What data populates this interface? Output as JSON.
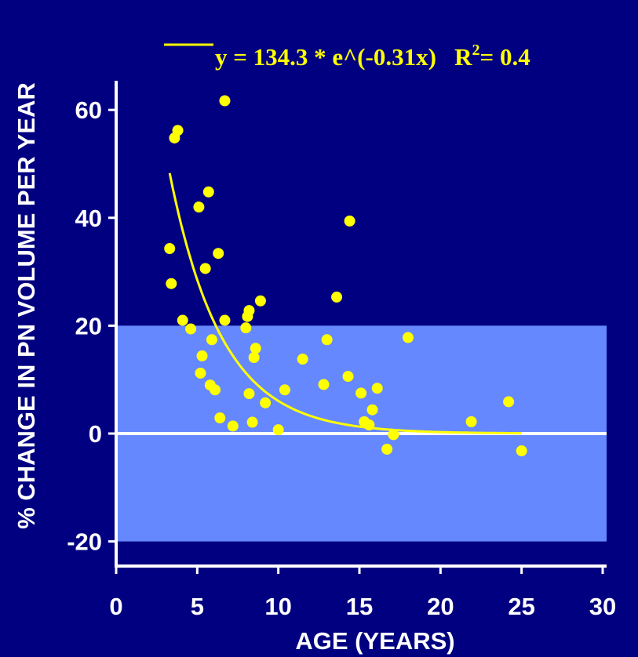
{
  "chart_data": {
    "type": "scatter",
    "xlabel": "AGE (YEARS)",
    "ylabel": "% CHANGE IN PN VOLUME PER YEAR",
    "xlim": [
      0,
      30
    ],
    "ylim": [
      -25,
      65
    ],
    "x_ticks": [
      0,
      5,
      10,
      15,
      20,
      25,
      30
    ],
    "y_ticks": [
      -20,
      0,
      20,
      40,
      60
    ],
    "band": {
      "from": -20,
      "to": 20,
      "color": "#6688ff"
    },
    "zero_line_color": "#ffffff",
    "marker_color": "#ffff00",
    "background_color": "#000080",
    "grid": false,
    "fit": {
      "equation_main": "y = 134.3 * e^(-0.31x)   R",
      "r2_superscript": "2",
      "r2_value": "= 0.4",
      "a": 134.3,
      "b": -0.31,
      "x_range": [
        3.3,
        25
      ]
    },
    "points": [
      [
        3.3,
        34.3
      ],
      [
        3.4,
        27.8
      ],
      [
        3.6,
        54.8
      ],
      [
        3.8,
        56.2
      ],
      [
        4.1,
        21.0
      ],
      [
        4.6,
        19.4
      ],
      [
        5.1,
        42.0
      ],
      [
        5.2,
        11.2
      ],
      [
        5.3,
        14.4
      ],
      [
        5.5,
        30.6
      ],
      [
        5.7,
        44.8
      ],
      [
        5.8,
        9.0
      ],
      [
        5.9,
        17.4
      ],
      [
        6.1,
        8.1
      ],
      [
        6.3,
        33.4
      ],
      [
        6.4,
        2.9
      ],
      [
        6.7,
        61.7
      ],
      [
        6.7,
        21.0
      ],
      [
        7.2,
        1.4
      ],
      [
        8.0,
        19.6
      ],
      [
        8.1,
        21.7
      ],
      [
        8.2,
        22.8
      ],
      [
        8.2,
        7.4
      ],
      [
        8.4,
        2.1
      ],
      [
        8.5,
        14.1
      ],
      [
        8.6,
        15.8
      ],
      [
        8.9,
        24.6
      ],
      [
        9.2,
        5.7
      ],
      [
        10.0,
        0.7
      ],
      [
        10.4,
        8.1
      ],
      [
        11.5,
        13.8
      ],
      [
        12.8,
        9.1
      ],
      [
        13.0,
        17.4
      ],
      [
        13.6,
        25.3
      ],
      [
        14.3,
        10.6
      ],
      [
        14.4,
        39.4
      ],
      [
        15.1,
        7.5
      ],
      [
        15.3,
        2.2
      ],
      [
        15.6,
        1.6
      ],
      [
        15.8,
        4.4
      ],
      [
        16.1,
        8.4
      ],
      [
        16.7,
        -2.9
      ],
      [
        17.1,
        -0.2
      ],
      [
        18.0,
        17.8
      ],
      [
        21.9,
        2.2
      ],
      [
        24.2,
        5.9
      ],
      [
        25.0,
        -3.2
      ]
    ]
  }
}
